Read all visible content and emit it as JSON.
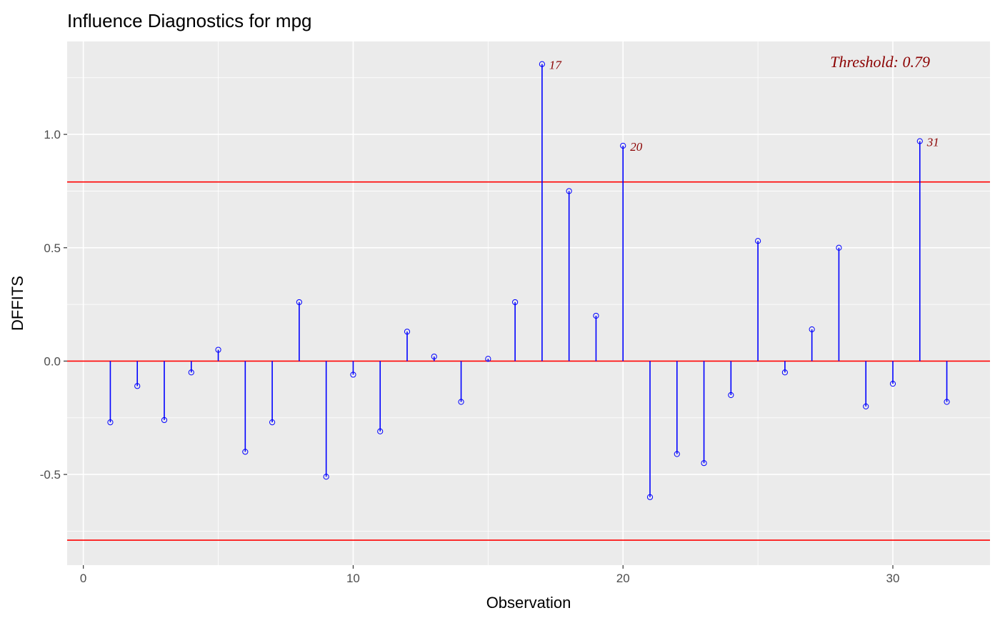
{
  "chart_data": {
    "type": "scatter",
    "title": "Influence Diagnostics for mpg",
    "xlabel": "Observation",
    "ylabel": "DFFITS",
    "xlim": [
      -0.6,
      33.6
    ],
    "ylim": [
      -0.9,
      1.41
    ],
    "x_ticks": [
      0,
      10,
      20,
      30
    ],
    "y_ticks": [
      -0.5,
      0.0,
      0.5,
      1.0
    ],
    "x_tick_labels": [
      "0",
      "10",
      "20",
      "30"
    ],
    "y_tick_labels": [
      "-0.5",
      "0.0",
      "0.5",
      "1.0"
    ],
    "grid": true,
    "threshold": 0.79,
    "threshold_label": "Threshold: 0.79",
    "x": [
      1,
      2,
      3,
      4,
      5,
      6,
      7,
      8,
      9,
      10,
      11,
      12,
      13,
      14,
      15,
      16,
      17,
      18,
      19,
      20,
      21,
      22,
      23,
      24,
      25,
      26,
      27,
      28,
      29,
      30,
      31,
      32
    ],
    "values": [
      -0.27,
      -0.11,
      -0.26,
      -0.05,
      0.05,
      -0.4,
      -0.27,
      0.26,
      -0.51,
      -0.06,
      -0.31,
      0.13,
      0.02,
      -0.18,
      0.01,
      0.26,
      1.31,
      0.75,
      0.2,
      0.95,
      -0.6,
      -0.41,
      -0.45,
      -0.15,
      0.53,
      -0.05,
      0.14,
      0.5,
      -0.2,
      -0.1,
      0.97,
      -0.18
    ],
    "labeled_points": [
      {
        "x": 17,
        "label": "17"
      },
      {
        "x": 20,
        "label": "20"
      },
      {
        "x": 31,
        "label": "31"
      }
    ],
    "colors": {
      "panel_background": "#ebebeb",
      "grid": "#ffffff",
      "stem": "#0000ff",
      "reference_line": "#ff0000",
      "label": "#8b0000",
      "tick_label": "#4d4d4d"
    }
  }
}
